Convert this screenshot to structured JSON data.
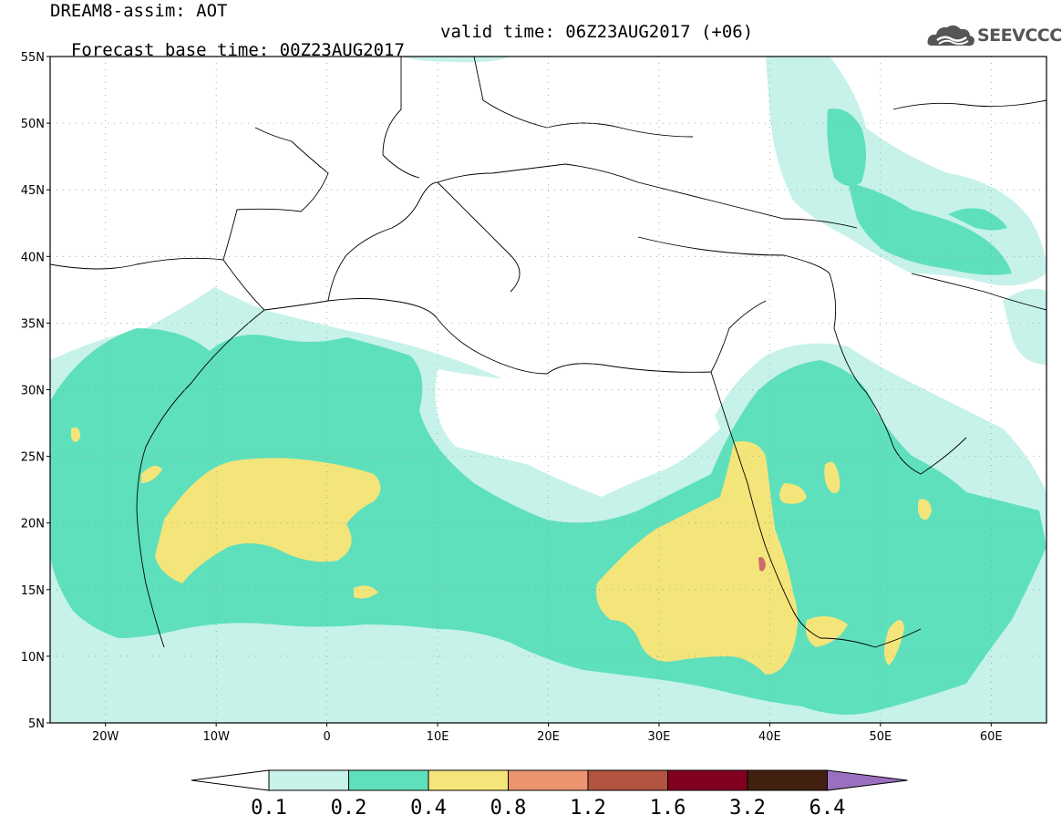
{
  "title": {
    "line1": "DREAM8-assim: AOT",
    "line2": "Forecast base time: 00Z23AUG2017",
    "valid": "valid time: 06Z23AUG2017 (+06)"
  },
  "logo": {
    "text": "SEEVCCC",
    "icon": "cloud-icon"
  },
  "axes": {
    "lat_labels": [
      "55N",
      "50N",
      "45N",
      "40N",
      "35N",
      "30N",
      "25N",
      "20N",
      "15N",
      "10N",
      "5N"
    ],
    "lon_labels": [
      "20W",
      "10W",
      "0",
      "10E",
      "20E",
      "30E",
      "40E",
      "50E",
      "60E"
    ]
  },
  "colorbar": {
    "labels": [
      "0.1",
      "0.2",
      "0.4",
      "0.8",
      "1.2",
      "1.6",
      "3.2",
      "6.4"
    ],
    "colors": [
      "#c6f2ea",
      "#5fe0bc",
      "#f4e57a",
      "#ec9470",
      "#b25440",
      "#820020",
      "#422010",
      "#9b6fbf"
    ]
  },
  "palette": {
    "c1": "#c6f2ea",
    "c2": "#5fe0bc",
    "c3": "#f4e57a",
    "c4": "#d06a6a"
  }
}
